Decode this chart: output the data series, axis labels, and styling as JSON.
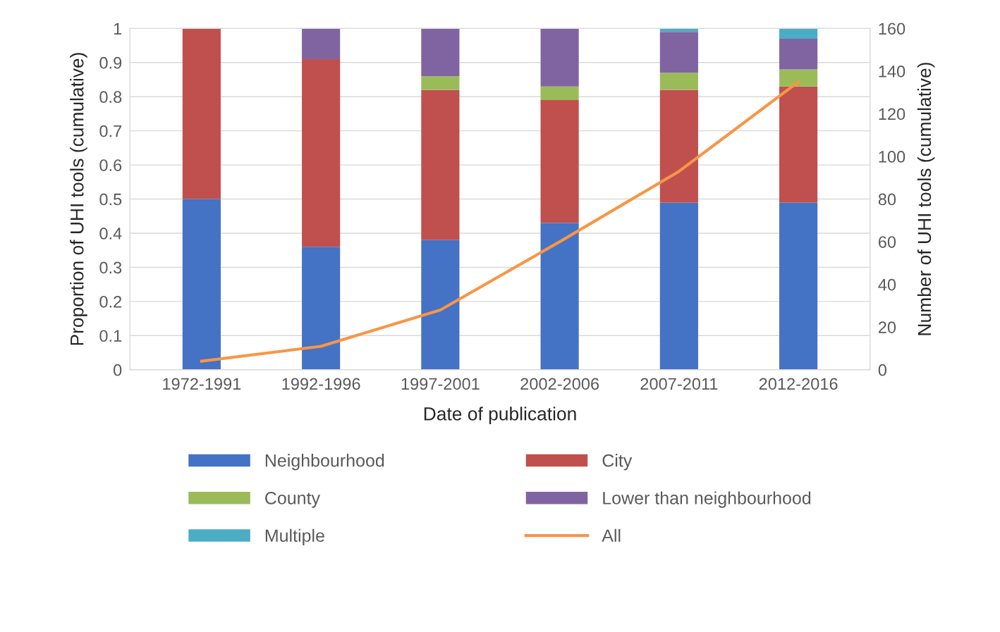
{
  "chart_data": {
    "type": "bar",
    "stacked": true,
    "xlabel": "Date of publication",
    "ylabel": "Proportion of UHI tools (cumulative)",
    "y2label": "Number of UHI tools (cumulative)",
    "categories": [
      "1972-1991",
      "1992-1996",
      "1997-2001",
      "2002-2006",
      "2007-2011",
      "2012-2016"
    ],
    "series": [
      {
        "name": "Neighbourhood",
        "color": "#4472c4",
        "values": [
          0.5,
          0.36,
          0.38,
          0.43,
          0.49,
          0.49
        ]
      },
      {
        "name": "City",
        "color": "#c0504d",
        "values": [
          0.5,
          0.55,
          0.44,
          0.36,
          0.33,
          0.34
        ]
      },
      {
        "name": "County",
        "color": "#9bbb59",
        "values": [
          0,
          0,
          0.04,
          0.04,
          0.05,
          0.05
        ]
      },
      {
        "name": "Lower than neighbourhood",
        "color": "#8064a2",
        "values": [
          0,
          0.09,
          0.14,
          0.17,
          0.12,
          0.09
        ]
      },
      {
        "name": "Multiple",
        "color": "#4bacc6",
        "values": [
          0,
          0,
          0,
          0,
          0.01,
          0.03
        ]
      },
      {
        "name": "All",
        "color": "#f79646",
        "type": "line",
        "axis": "y2",
        "marker": "none",
        "values": [
          4,
          11,
          28,
          60,
          93,
          135
        ]
      }
    ],
    "ylim": [
      0,
      1
    ],
    "yticks": [
      0,
      0.1,
      0.2,
      0.3,
      0.4,
      0.5,
      0.6,
      0.7,
      0.8,
      0.9,
      1
    ],
    "y2lim": [
      0,
      160
    ],
    "y2ticks": [
      0,
      20,
      40,
      60,
      80,
      100,
      120,
      140,
      160
    ],
    "grid": "y",
    "legend": "bottom"
  }
}
